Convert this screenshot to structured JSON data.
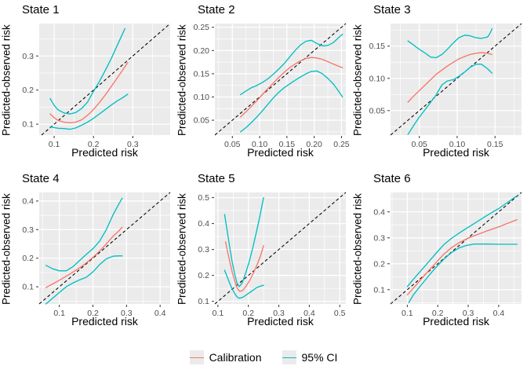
{
  "style": {
    "panel_fill": "#EBEBEB",
    "grid_color": "#FFFFFF",
    "tick_label_color": "#4D4D4D",
    "tick_mark_color": "#333333",
    "axis_label_color": "#000000",
    "calibration_color": "#F8766D",
    "ci_color": "#00BFC4",
    "reference_color": "#000000"
  },
  "legend": {
    "items": [
      {
        "label": "Calibration",
        "color": "#F8766D"
      },
      {
        "label": "95% CI",
        "color": "#00BFC4"
      }
    ]
  },
  "chart_data": [
    {
      "type": "line",
      "title": "State 1",
      "xlabel": "Predicted risk",
      "ylabel": "Predicted-observed risk",
      "xlim": [
        0.062,
        0.395
      ],
      "ylim": [
        0.068,
        0.395
      ],
      "xticks": [
        0.1,
        0.2,
        0.3
      ],
      "xtick_labels": [
        "0.1",
        "0.2",
        "0.3"
      ],
      "yticks": [
        0.1,
        0.2,
        0.3
      ],
      "ytick_labels": [
        "0.1",
        "0.2",
        "0.3"
      ],
      "reference_line": "y=x",
      "series": [
        {
          "name": "95% CI upper",
          "role": "ci",
          "x": [
            0.09,
            0.1,
            0.11,
            0.125,
            0.14,
            0.155,
            0.17,
            0.185,
            0.2,
            0.215,
            0.23,
            0.245,
            0.26,
            0.272,
            0.28
          ],
          "y": [
            0.175,
            0.155,
            0.142,
            0.133,
            0.13,
            0.134,
            0.146,
            0.165,
            0.196,
            0.225,
            0.258,
            0.292,
            0.33,
            0.36,
            0.38
          ]
        },
        {
          "name": "95% CI lower",
          "role": "ci",
          "x": [
            0.09,
            0.1,
            0.11,
            0.125,
            0.14,
            0.155,
            0.17,
            0.185,
            0.2,
            0.215,
            0.23,
            0.245,
            0.26,
            0.275,
            0.287
          ],
          "y": [
            0.092,
            0.09,
            0.088,
            0.087,
            0.085,
            0.089,
            0.097,
            0.106,
            0.117,
            0.13,
            0.143,
            0.156,
            0.168,
            0.178,
            0.188
          ]
        },
        {
          "name": "Calibration",
          "role": "calibration",
          "x": [
            0.09,
            0.1,
            0.11,
            0.125,
            0.14,
            0.155,
            0.17,
            0.185,
            0.2,
            0.215,
            0.23,
            0.245,
            0.26,
            0.275,
            0.287
          ],
          "y": [
            0.13,
            0.119,
            0.111,
            0.106,
            0.104,
            0.106,
            0.113,
            0.126,
            0.143,
            0.163,
            0.186,
            0.21,
            0.235,
            0.26,
            0.28
          ]
        }
      ]
    },
    {
      "type": "line",
      "title": "State 2",
      "xlabel": "Predicted risk",
      "ylabel": "Predicted-observed risk",
      "xlim": [
        0.018,
        0.258
      ],
      "ylim": [
        0.018,
        0.258
      ],
      "xticks": [
        0.05,
        0.1,
        0.15,
        0.2,
        0.25
      ],
      "xtick_labels": [
        "0.05",
        "0.10",
        "0.15",
        "0.20",
        "0.25"
      ],
      "yticks": [
        0.05,
        0.1,
        0.15,
        0.2,
        0.25
      ],
      "ytick_labels": [
        "0.05",
        "0.10",
        "0.15",
        "0.20",
        "0.25"
      ],
      "reference_line": "y=x",
      "series": [
        {
          "name": "95% CI upper",
          "role": "ci",
          "x": [
            0.065,
            0.075,
            0.085,
            0.095,
            0.105,
            0.115,
            0.125,
            0.135,
            0.145,
            0.155,
            0.165,
            0.175,
            0.185,
            0.195,
            0.205,
            0.215,
            0.225,
            0.235,
            0.245,
            0.252
          ],
          "y": [
            0.105,
            0.113,
            0.12,
            0.125,
            0.131,
            0.139,
            0.149,
            0.16,
            0.172,
            0.186,
            0.2,
            0.212,
            0.22,
            0.222,
            0.215,
            0.21,
            0.211,
            0.217,
            0.228,
            0.235
          ]
        },
        {
          "name": "95% CI lower",
          "role": "ci",
          "x": [
            0.065,
            0.075,
            0.085,
            0.095,
            0.105,
            0.115,
            0.125,
            0.135,
            0.145,
            0.155,
            0.165,
            0.175,
            0.185,
            0.195,
            0.205,
            0.215,
            0.225,
            0.235,
            0.245,
            0.252
          ],
          "y": [
            0.025,
            0.034,
            0.045,
            0.057,
            0.07,
            0.084,
            0.098,
            0.11,
            0.12,
            0.128,
            0.136,
            0.143,
            0.15,
            0.155,
            0.156,
            0.15,
            0.14,
            0.128,
            0.112,
            0.1
          ]
        },
        {
          "name": "Calibration",
          "role": "calibration",
          "x": [
            0.065,
            0.075,
            0.085,
            0.095,
            0.105,
            0.115,
            0.125,
            0.135,
            0.145,
            0.155,
            0.165,
            0.175,
            0.185,
            0.195,
            0.205,
            0.215,
            0.225,
            0.235,
            0.245,
            0.252
          ],
          "y": [
            0.057,
            0.068,
            0.08,
            0.092,
            0.105,
            0.118,
            0.13,
            0.142,
            0.153,
            0.163,
            0.171,
            0.178,
            0.183,
            0.185,
            0.184,
            0.181,
            0.176,
            0.171,
            0.166,
            0.163
          ]
        }
      ]
    },
    {
      "type": "line",
      "title": "State 3",
      "xlabel": "Predicted risk",
      "ylabel": "Predicted-observed risk",
      "xlim": [
        0.012,
        0.185
      ],
      "ylim": [
        0.012,
        0.185
      ],
      "xticks": [
        0.05,
        0.1,
        0.15
      ],
      "xtick_labels": [
        "0.05",
        "0.10",
        "0.15"
      ],
      "yticks": [
        0.05,
        0.1,
        0.15
      ],
      "ytick_labels": [
        "0.05",
        "0.10",
        "0.15"
      ],
      "reference_line": "y=x",
      "series": [
        {
          "name": "95% CI upper",
          "role": "ci",
          "x": [
            0.035,
            0.042,
            0.05,
            0.058,
            0.065,
            0.072,
            0.08,
            0.087,
            0.095,
            0.102,
            0.11,
            0.117,
            0.125,
            0.132,
            0.14,
            0.143,
            0.146
          ],
          "y": [
            0.158,
            0.152,
            0.145,
            0.139,
            0.133,
            0.132,
            0.137,
            0.145,
            0.155,
            0.163,
            0.167,
            0.166,
            0.163,
            0.162,
            0.164,
            0.169,
            0.177
          ]
        },
        {
          "name": "95% CI lower",
          "role": "ci",
          "x": [
            0.035,
            0.042,
            0.05,
            0.058,
            0.065,
            0.072,
            0.08,
            0.087,
            0.095,
            0.102,
            0.11,
            0.117,
            0.125,
            0.132,
            0.14,
            0.146
          ],
          "y": [
            0.013,
            0.026,
            0.04,
            0.052,
            0.063,
            0.074,
            0.09,
            0.096,
            0.098,
            0.103,
            0.11,
            0.117,
            0.122,
            0.122,
            0.115,
            0.108
          ]
        },
        {
          "name": "Calibration",
          "role": "calibration",
          "x": [
            0.035,
            0.042,
            0.05,
            0.058,
            0.065,
            0.072,
            0.08,
            0.087,
            0.095,
            0.102,
            0.11,
            0.117,
            0.125,
            0.132,
            0.14,
            0.146
          ],
          "y": [
            0.063,
            0.072,
            0.081,
            0.09,
            0.098,
            0.106,
            0.113,
            0.119,
            0.125,
            0.13,
            0.134,
            0.137,
            0.139,
            0.14,
            0.139,
            0.137
          ]
        }
      ]
    },
    {
      "type": "line",
      "title": "State 4",
      "xlabel": "Predicted risk",
      "ylabel": "Predicted-observed risk",
      "xlim": [
        0.04,
        0.43
      ],
      "ylim": [
        0.04,
        0.43
      ],
      "xticks": [
        0.1,
        0.2,
        0.3,
        0.4
      ],
      "xtick_labels": [
        "0.1",
        "0.2",
        "0.3",
        "0.4"
      ],
      "yticks": [
        0.1,
        0.2,
        0.3,
        0.4
      ],
      "ytick_labels": [
        "0.1",
        "0.2",
        "0.3",
        "0.4"
      ],
      "reference_line": "y=x",
      "series": [
        {
          "name": "95% CI upper",
          "role": "ci",
          "x": [
            0.06,
            0.08,
            0.1,
            0.12,
            0.14,
            0.16,
            0.18,
            0.2,
            0.22,
            0.24,
            0.26,
            0.275,
            0.287
          ],
          "y": [
            0.175,
            0.163,
            0.156,
            0.156,
            0.17,
            0.192,
            0.213,
            0.233,
            0.26,
            0.3,
            0.352,
            0.385,
            0.41
          ]
        },
        {
          "name": "95% CI lower",
          "role": "ci",
          "x": [
            0.06,
            0.08,
            0.1,
            0.12,
            0.14,
            0.16,
            0.18,
            0.2,
            0.22,
            0.24,
            0.26,
            0.275,
            0.287
          ],
          "y": [
            0.04,
            0.06,
            0.08,
            0.1,
            0.113,
            0.124,
            0.133,
            0.152,
            0.178,
            0.198,
            0.207,
            0.208,
            0.208
          ]
        },
        {
          "name": "Calibration",
          "role": "calibration",
          "x": [
            0.06,
            0.08,
            0.1,
            0.12,
            0.14,
            0.16,
            0.18,
            0.2,
            0.22,
            0.24,
            0.26,
            0.275,
            0.287
          ],
          "y": [
            0.097,
            0.11,
            0.123,
            0.137,
            0.151,
            0.166,
            0.183,
            0.203,
            0.225,
            0.25,
            0.277,
            0.293,
            0.308
          ]
        }
      ]
    },
    {
      "type": "line",
      "title": "State 5",
      "xlabel": "Predicted risk",
      "ylabel": "Predicted-observed risk",
      "xlim": [
        0.09,
        0.52
      ],
      "ylim": [
        0.09,
        0.52
      ],
      "xticks": [
        0.1,
        0.2,
        0.3,
        0.4,
        0.5
      ],
      "xtick_labels": [
        "0.1",
        "0.2",
        "0.3",
        "0.4",
        "0.5"
      ],
      "yticks": [
        0.1,
        0.2,
        0.3,
        0.4,
        0.5
      ],
      "ytick_labels": [
        "0.1",
        "0.2",
        "0.3",
        "0.4",
        "0.5"
      ],
      "reference_line": "y=x",
      "series": [
        {
          "name": "95% CI upper",
          "role": "ci",
          "x": [
            0.122,
            0.13,
            0.138,
            0.146,
            0.154,
            0.162,
            0.17,
            0.18,
            0.19,
            0.202,
            0.214,
            0.226,
            0.238,
            0.25
          ],
          "y": [
            0.435,
            0.375,
            0.315,
            0.258,
            0.21,
            0.172,
            0.157,
            0.172,
            0.205,
            0.25,
            0.305,
            0.365,
            0.43,
            0.5
          ]
        },
        {
          "name": "95% CI lower",
          "role": "ci",
          "x": [
            0.122,
            0.13,
            0.138,
            0.146,
            0.154,
            0.162,
            0.17,
            0.18,
            0.19,
            0.202,
            0.214,
            0.226,
            0.238,
            0.25
          ],
          "y": [
            0.22,
            0.196,
            0.172,
            0.15,
            0.132,
            0.118,
            0.112,
            0.115,
            0.122,
            0.132,
            0.142,
            0.152,
            0.158,
            0.162
          ]
        },
        {
          "name": "Calibration",
          "role": "calibration",
          "x": [
            0.125,
            0.132,
            0.14,
            0.148,
            0.156,
            0.164,
            0.172,
            0.182,
            0.192,
            0.204,
            0.216,
            0.228,
            0.24,
            0.25
          ],
          "y": [
            0.33,
            0.29,
            0.248,
            0.208,
            0.175,
            0.15,
            0.138,
            0.143,
            0.158,
            0.18,
            0.208,
            0.24,
            0.276,
            0.315
          ]
        }
      ]
    },
    {
      "type": "line",
      "title": "State 6",
      "xlabel": "Predicted risk",
      "ylabel": "Predicted-observed risk",
      "xlim": [
        0.045,
        0.475
      ],
      "ylim": [
        0.045,
        0.475
      ],
      "xticks": [
        0.1,
        0.2,
        0.3,
        0.4
      ],
      "xtick_labels": [
        "0.1",
        "0.2",
        "0.3",
        "0.4"
      ],
      "yticks": [
        0.1,
        0.2,
        0.3,
        0.4
      ],
      "ytick_labels": [
        "0.1",
        "0.2",
        "0.3",
        "0.4"
      ],
      "reference_line": "y=x",
      "series": [
        {
          "name": "95% CI upper",
          "role": "ci",
          "x": [
            0.1,
            0.12,
            0.14,
            0.16,
            0.18,
            0.2,
            0.22,
            0.245,
            0.27,
            0.295,
            0.32,
            0.36,
            0.4,
            0.43,
            0.46
          ],
          "y": [
            0.112,
            0.14,
            0.167,
            0.194,
            0.221,
            0.248,
            0.274,
            0.298,
            0.318,
            0.337,
            0.355,
            0.385,
            0.413,
            0.437,
            0.462
          ]
        },
        {
          "name": "95% CI lower",
          "role": "ci",
          "x": [
            0.105,
            0.12,
            0.14,
            0.16,
            0.18,
            0.2,
            0.22,
            0.245,
            0.27,
            0.295,
            0.32,
            0.36,
            0.4,
            0.43,
            0.46
          ],
          "y": [
            0.05,
            0.08,
            0.11,
            0.139,
            0.167,
            0.193,
            0.218,
            0.243,
            0.261,
            0.271,
            0.276,
            0.276,
            0.275,
            0.275,
            0.275
          ]
        },
        {
          "name": "Calibration",
          "role": "calibration",
          "x": [
            0.1,
            0.12,
            0.14,
            0.16,
            0.18,
            0.2,
            0.22,
            0.245,
            0.27,
            0.295,
            0.32,
            0.36,
            0.4,
            0.43,
            0.46
          ],
          "y": [
            0.08,
            0.106,
            0.133,
            0.16,
            0.186,
            0.212,
            0.237,
            0.262,
            0.281,
            0.296,
            0.308,
            0.326,
            0.342,
            0.356,
            0.37
          ]
        }
      ]
    }
  ]
}
